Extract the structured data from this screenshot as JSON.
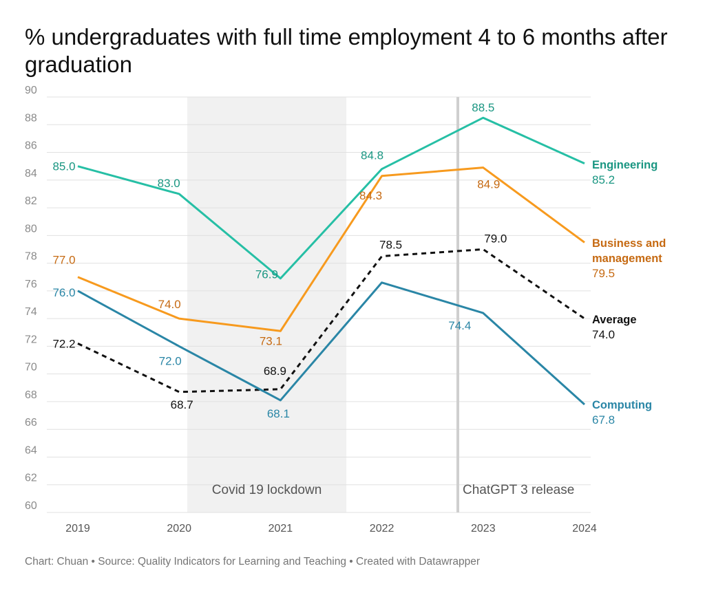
{
  "title": "% undergraduates with full time employment 4 to 6 months after graduation",
  "footer": "Chart: Chuan • Source: Quality Indicators for Learning and Teaching • Created with Datawrapper",
  "chart_data": {
    "type": "line",
    "x": [
      "2019",
      "2020",
      "2021",
      "2022",
      "2023",
      "2024"
    ],
    "ylim": [
      60,
      90
    ],
    "yticks": [
      60,
      62,
      64,
      66,
      68,
      70,
      72,
      74,
      76,
      78,
      80,
      82,
      84,
      86,
      88,
      90
    ],
    "grid": true,
    "series": [
      {
        "name": "Engineering",
        "color": "#26bfa5",
        "label_color": "#1a9682",
        "dash": false,
        "values": [
          85.0,
          83.0,
          76.9,
          84.8,
          88.5,
          85.2
        ],
        "labels": [
          "85.0",
          "83.0",
          "76.9",
          "84.8",
          "88.5",
          "85.2"
        ]
      },
      {
        "name": "Business and management",
        "color": "#f79a1e",
        "label_color": "#c66a12",
        "dash": false,
        "values": [
          77.0,
          74.0,
          73.1,
          84.3,
          84.9,
          79.5
        ],
        "labels": [
          "77.0",
          "74.0",
          "73.1",
          "84.3",
          "84.9",
          "79.5"
        ]
      },
      {
        "name": "Average",
        "color": "#111111",
        "label_color": "#111111",
        "dash": true,
        "values": [
          72.2,
          68.7,
          68.9,
          78.5,
          79.0,
          74.0
        ],
        "labels": [
          "72.2",
          "68.7",
          "68.9",
          "78.5",
          "79.0",
          "74.0"
        ]
      },
      {
        "name": "Computing",
        "color": "#2a86a6",
        "label_color": "#2a86a6",
        "dash": false,
        "values": [
          76.0,
          72.0,
          68.1,
          76.6,
          74.4,
          67.8
        ],
        "labels": [
          "76.0",
          "72.0",
          "68.1",
          null,
          "74.4",
          "67.8"
        ]
      }
    ],
    "annotations": [
      {
        "type": "band",
        "x_from": 2020.08,
        "x_to": 2021.65,
        "text": "Covid 19 lockdown"
      },
      {
        "type": "vline",
        "x": 2022.75,
        "text": "ChatGPT 3 release"
      }
    ]
  }
}
